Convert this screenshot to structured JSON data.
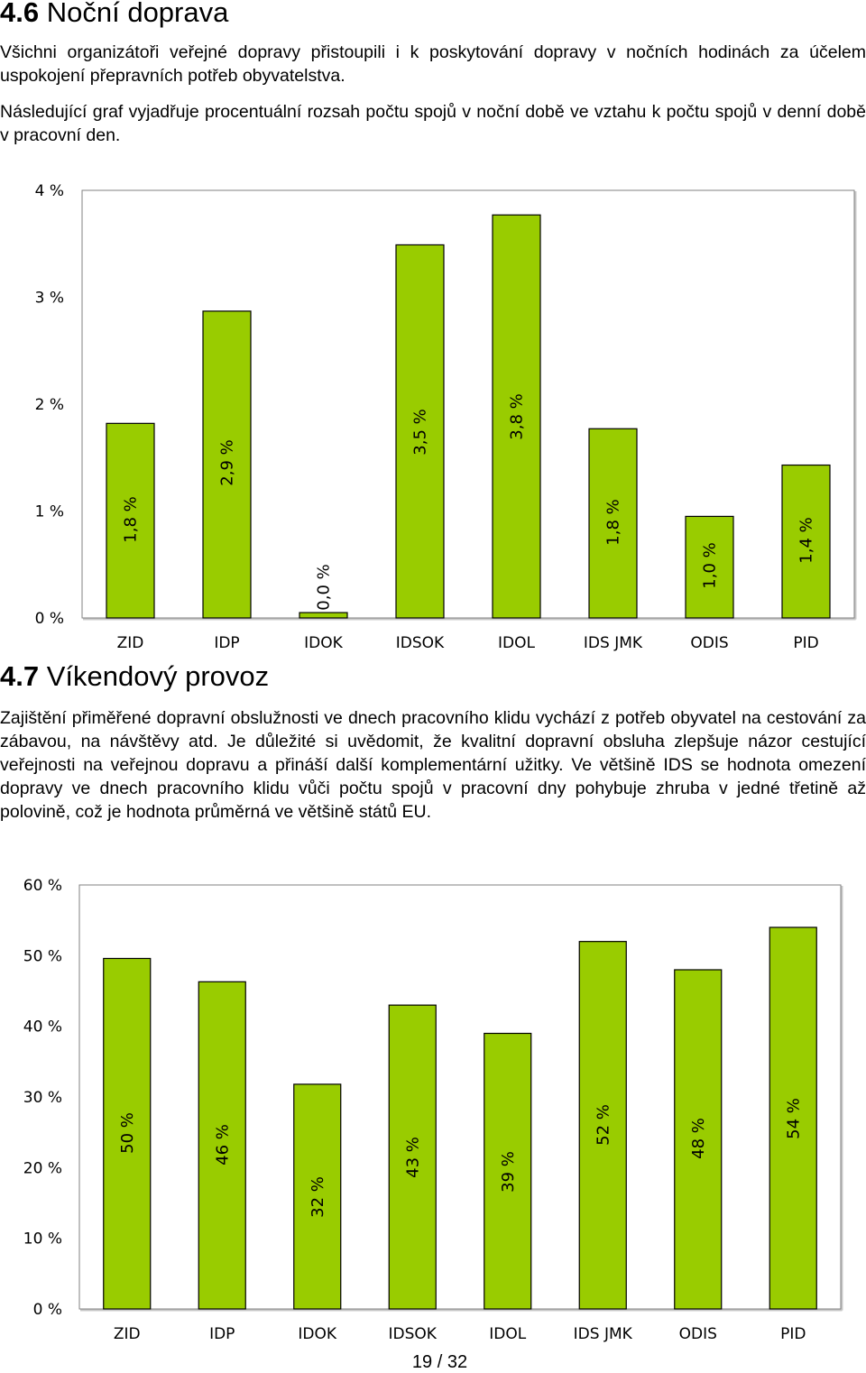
{
  "section1": {
    "number": "4.6",
    "title": "Noční doprava",
    "paragraphs": [
      "Všichni organizátoři veřejné dopravy přistoupili i k poskytování dopravy v nočních hodinách za účelem uspokojení přepravních potřeb obyvatelstva.",
      "Následující graf vyjadřuje procentuální rozsah počtu spojů v noční době ve vztahu k počtu spojů v denní době v pracovní den."
    ]
  },
  "section2": {
    "number": "4.7",
    "title": "Víkendový provoz",
    "paragraph": "Zajištění přiměřené dopravní obslužnosti ve dnech pracovního klidu vychází z potřeb obyvatel na cestování za zábavou, na návštěvy atd. Je důležité si uvědomit, že kvalitní dopravní obsluha zlepšuje názor cestující veřejnosti na veřejnou dopravu a přináší další komplementární užitky. Ve většině IDS se hodnota omezení dopravy ve dnech pracovního klidu vůči počtu spojů v pracovní dny pohybuje zhruba v jedné třetině až polovině, což je hodnota průměrná ve většině států EU."
  },
  "chart_data": [
    {
      "type": "bar",
      "title": "",
      "xlabel": "",
      "ylabel": "",
      "categories": [
        "ZID",
        "IDP",
        "IDOK",
        "IDSOK",
        "IDOL",
        "IDS JMK",
        "ODIS",
        "PID"
      ],
      "values": [
        1.82,
        2.87,
        0.05,
        3.49,
        3.77,
        1.77,
        0.95,
        1.43
      ],
      "data_labels": [
        "1,8 %",
        "2,9 %",
        "0,0 %",
        "3,5 %",
        "3,8 %",
        "1,8 %",
        "1,0 %",
        "1,4 %"
      ],
      "ylim": [
        0,
        4
      ],
      "yticks": [
        0,
        1,
        2,
        3,
        4
      ],
      "ytick_labels": [
        "0 %",
        "1 %",
        "2 %",
        "3 %",
        "4 %"
      ],
      "grid": false,
      "legend": "none",
      "bar_color": "#99cc00"
    },
    {
      "type": "bar",
      "title": "",
      "xlabel": "",
      "ylabel": "",
      "categories": [
        "ZID",
        "IDP",
        "IDOK",
        "IDSOK",
        "IDOL",
        "IDS JMK",
        "ODIS",
        "PID"
      ],
      "values": [
        49.6,
        46.3,
        31.8,
        43.0,
        39.0,
        52.0,
        48.0,
        54.0
      ],
      "data_labels": [
        "50 %",
        "46 %",
        "32 %",
        "43 %",
        "39 %",
        "52 %",
        "48 %",
        "54 %"
      ],
      "ylim": [
        0,
        60
      ],
      "yticks": [
        0,
        10,
        20,
        30,
        40,
        50,
        60
      ],
      "ytick_labels": [
        "0 %",
        "10 %",
        "20 %",
        "30 %",
        "40 %",
        "50 %",
        "60 %"
      ],
      "grid": false,
      "legend": "none",
      "bar_color": "#99cc00"
    }
  ],
  "footer": {
    "page": "19 / 32"
  }
}
